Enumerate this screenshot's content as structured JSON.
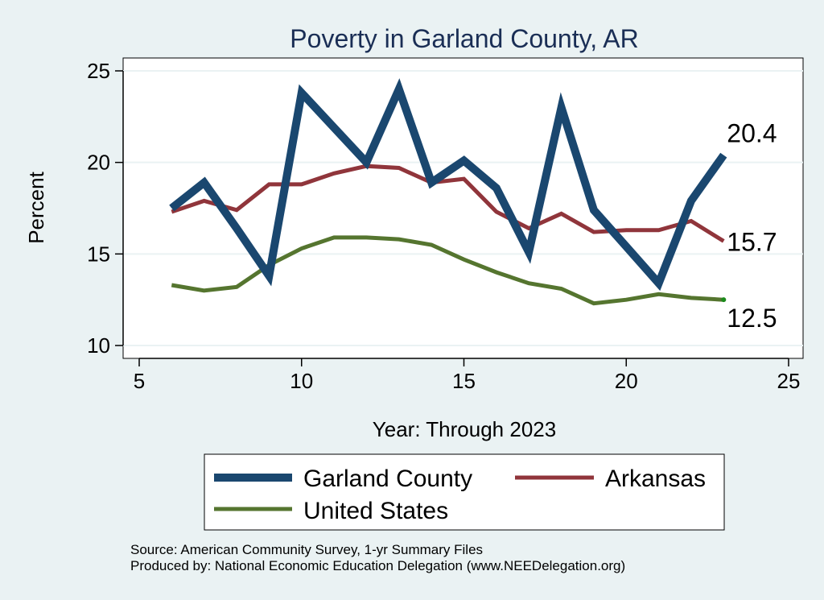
{
  "chart_data": {
    "type": "line",
    "title": "Poverty in Garland County, AR",
    "xlabel": "Year: Through 2023",
    "ylabel": "Percent",
    "xlim": [
      5,
      25
    ],
    "ylim": [
      10,
      25
    ],
    "xticks": [
      5,
      10,
      15,
      20,
      25
    ],
    "yticks": [
      10,
      15,
      20,
      25
    ],
    "grid": true,
    "x": [
      6,
      7,
      8,
      9,
      10,
      11,
      12,
      13,
      14,
      15,
      16,
      17,
      18,
      19,
      20,
      21,
      22,
      23
    ],
    "series": [
      {
        "name": "Garland County",
        "color": "#1a476f",
        "values": [
          17.5,
          18.9,
          16.4,
          13.8,
          23.8,
          21.9,
          20.0,
          24.0,
          18.9,
          20.1,
          18.6,
          15.1,
          23.0,
          17.4,
          15.4,
          13.4,
          17.9,
          20.4
        ],
        "end_label": "20.4"
      },
      {
        "name": "Arkansas",
        "color": "#90353b",
        "values": [
          17.3,
          17.9,
          17.4,
          18.8,
          18.8,
          19.4,
          19.8,
          19.7,
          18.9,
          19.1,
          17.3,
          16.4,
          17.2,
          16.2,
          16.3,
          16.3,
          16.8,
          15.7
        ],
        "end_label": "15.7"
      },
      {
        "name": "United States",
        "color": "#55752f",
        "values": [
          13.3,
          13.0,
          13.2,
          14.4,
          15.3,
          15.9,
          15.9,
          15.8,
          15.5,
          14.7,
          14.0,
          13.4,
          13.1,
          12.3,
          12.5,
          12.8,
          12.6,
          12.5
        ],
        "end_label": "12.5"
      }
    ],
    "legend": {
      "position": "bottom",
      "entries": [
        "Garland County",
        "Arkansas",
        "United States"
      ]
    },
    "notes": [
      "Source: American Community Survey, 1-yr Summary Files",
      "Produced by: National Economic Education Delegation (www.NEEDelegation.org)"
    ]
  }
}
